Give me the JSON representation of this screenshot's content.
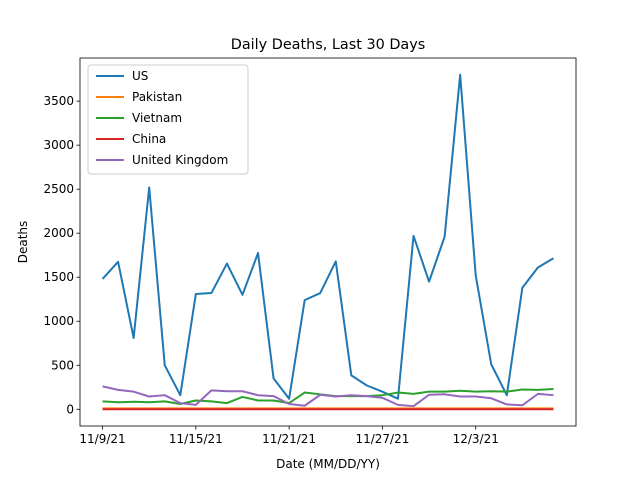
{
  "chart_data": {
    "type": "line",
    "title": "Daily Deaths, Last 30 Days",
    "xlabel": "Date (MM/DD/YY)",
    "ylabel": "Deaths",
    "categories": [
      "11/9/21",
      null,
      null,
      null,
      null,
      null,
      "11/15/21",
      null,
      null,
      null,
      null,
      null,
      "11/21/21",
      null,
      null,
      null,
      null,
      null,
      "11/27/21",
      null,
      null,
      null,
      null,
      null,
      "12/3/21",
      null,
      null,
      null,
      null,
      null
    ],
    "series": [
      {
        "name": "US",
        "color": "#1f77b4",
        "values": [
          1480,
          1675,
          810,
          2520,
          500,
          160,
          1310,
          1320,
          1655,
          1300,
          1775,
          350,
          120,
          1240,
          1320,
          1680,
          385,
          270,
          200,
          120,
          1970,
          1450,
          1960,
          3800,
          1520,
          510,
          160,
          1380,
          1610,
          1715
        ]
      },
      {
        "name": "Pakistan",
        "color": "#ff7f0e",
        "values": [
          10,
          10,
          10,
          10,
          10,
          10,
          10,
          10,
          10,
          10,
          10,
          10,
          10,
          10,
          10,
          10,
          10,
          10,
          10,
          10,
          10,
          10,
          10,
          10,
          10,
          10,
          10,
          10,
          10,
          10
        ]
      },
      {
        "name": "Vietnam",
        "color": "#2ca02c",
        "values": [
          90,
          80,
          85,
          80,
          90,
          60,
          100,
          90,
          70,
          140,
          100,
          100,
          70,
          190,
          170,
          150,
          150,
          150,
          160,
          190,
          175,
          200,
          200,
          210,
          200,
          205,
          200,
          225,
          220,
          230
        ]
      },
      {
        "name": "China",
        "color": "#d62728",
        "values": [
          0,
          0,
          0,
          0,
          0,
          0,
          0,
          0,
          0,
          0,
          0,
          0,
          0,
          0,
          0,
          0,
          0,
          0,
          0,
          0,
          0,
          0,
          0,
          0,
          0,
          0,
          0,
          0,
          0,
          0
        ]
      },
      {
        "name": "United Kingdom",
        "color": "#9467bd",
        "values": [
          260,
          220,
          200,
          145,
          160,
          70,
          50,
          215,
          205,
          205,
          160,
          150,
          60,
          40,
          165,
          145,
          160,
          150,
          130,
          50,
          35,
          165,
          170,
          145,
          145,
          125,
          55,
          45,
          175,
          160
        ]
      }
    ],
    "ylim": [
      -190,
      3990
    ],
    "yticks": [
      0,
      500,
      1000,
      1500,
      2000,
      2500,
      3000,
      3500
    ],
    "legend": "upper left"
  }
}
